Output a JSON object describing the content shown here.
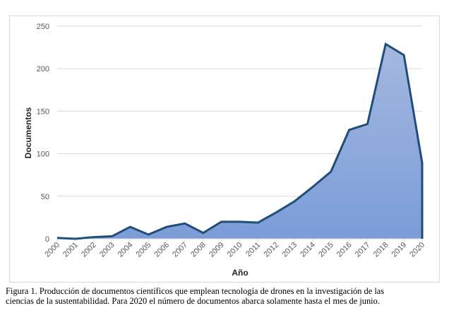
{
  "chart_data": {
    "type": "area",
    "title": "",
    "xlabel": "Año",
    "ylabel": "Documentos",
    "ylim": [
      0,
      250
    ],
    "yticks": [
      0,
      50,
      100,
      150,
      200,
      250
    ],
    "grid": true,
    "legend": null,
    "categories": [
      "2000",
      "2001",
      "2002",
      "2003",
      "2004",
      "2005",
      "2006",
      "2007",
      "2008",
      "2009",
      "2010",
      "2011",
      "2012",
      "2013",
      "2014",
      "2015",
      "2016",
      "2017",
      "2018",
      "2019",
      "2020"
    ],
    "series": [
      {
        "name": "Documentos",
        "values": [
          1,
          0,
          2,
          3,
          14,
          5,
          14,
          18,
          7,
          20,
          20,
          19,
          31,
          44,
          61,
          79,
          128,
          135,
          229,
          216,
          89
        ]
      }
    ],
    "colors": {
      "line": "#1f4e79",
      "fill_top": "#a4b8e0",
      "fill_bottom": "#7c9cd8",
      "grid": "#d9d9d9",
      "tick_text": "#595959"
    }
  },
  "caption": {
    "line1": "Figura 1. Producción de documentos científicos que emplean tecnología de drones en la investigación de las",
    "line2": "ciencias de la sustentabilidad. Para 2020 el número de documentos abarca solamente hasta el mes de junio."
  }
}
